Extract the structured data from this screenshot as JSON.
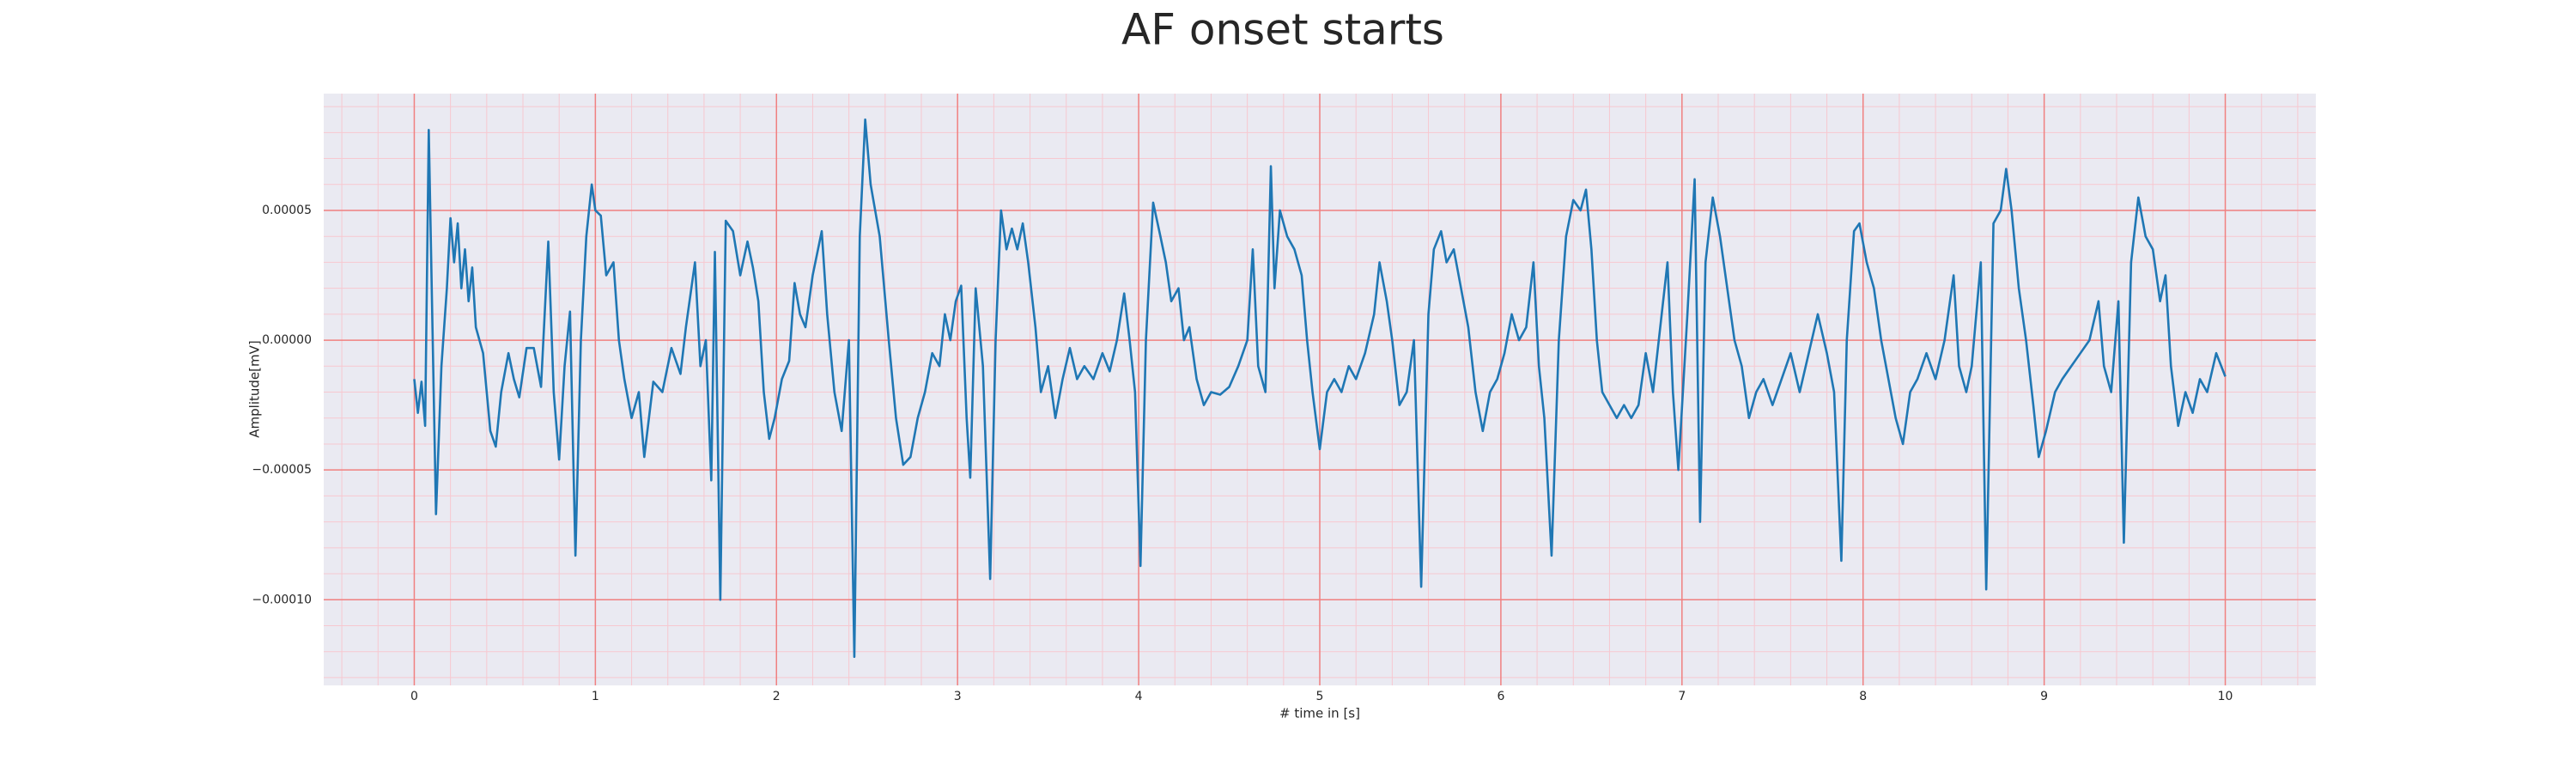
{
  "chart_data": {
    "type": "line",
    "title": "AF onset starts",
    "xlabel": "# time in [s]",
    "ylabel": "Amplitude[mV]",
    "color": "#1f77b4",
    "grid": true,
    "minor_grid": true,
    "xlim": [
      -0.5,
      10.5
    ],
    "ylim": [
      -0.000133,
      9.5e-05
    ],
    "xticks": [
      0,
      1,
      2,
      3,
      4,
      5,
      6,
      7,
      8,
      9,
      10
    ],
    "yticks": [
      {
        "value": -0.0001,
        "label": "−0.00010"
      },
      {
        "value": -5e-05,
        "label": "−0.00005"
      },
      {
        "value": 0,
        "label": "0.00000"
      },
      {
        "value": 5e-05,
        "label": "0.00005"
      }
    ],
    "xminorticks": [
      -0.4,
      -0.2,
      0.2,
      0.4,
      0.6,
      0.8,
      1.2,
      1.4,
      1.6,
      1.8,
      2.2,
      2.4,
      2.6,
      2.8,
      3.2,
      3.4,
      3.6,
      3.8,
      4.2,
      4.4,
      4.6,
      4.8,
      5.2,
      5.4,
      5.6,
      5.8,
      6.2,
      6.4,
      6.6,
      6.8,
      7.2,
      7.4,
      7.6,
      7.8,
      8.2,
      8.4,
      8.6,
      8.8,
      9.2,
      9.4,
      9.6,
      9.8,
      10.2,
      10.4
    ],
    "yminorticks": [
      -0.00013,
      -0.00012,
      -0.00011,
      -9e-05,
      -8e-05,
      -7e-05,
      -6e-05,
      -4e-05,
      -3e-05,
      -2e-05,
      -1e-05,
      1e-05,
      2e-05,
      3e-05,
      4e-05,
      6e-05,
      7e-05,
      8e-05,
      9e-05
    ],
    "x": [
      0,
      0.02,
      0.04,
      0.06,
      0.08,
      0.12,
      0.15,
      0.18,
      0.2,
      0.22,
      0.24,
      0.26,
      0.28,
      0.3,
      0.32,
      0.34,
      0.38,
      0.42,
      0.45,
      0.48,
      0.52,
      0.55,
      0.58,
      0.62,
      0.66,
      0.7,
      0.74,
      0.77,
      0.8,
      0.83,
      0.86,
      0.89,
      0.92,
      0.95,
      0.98,
      1.0,
      1.03,
      1.06,
      1.1,
      1.13,
      1.16,
      1.2,
      1.24,
      1.27,
      1.32,
      1.37,
      1.42,
      1.47,
      1.5,
      1.55,
      1.58,
      1.61,
      1.64,
      1.66,
      1.69,
      1.72,
      1.76,
      1.8,
      1.84,
      1.87,
      1.9,
      1.93,
      1.96,
      1.99,
      2.03,
      2.07,
      2.1,
      2.13,
      2.16,
      2.2,
      2.25,
      2.28,
      2.32,
      2.36,
      2.4,
      2.43,
      2.46,
      2.49,
      2.52,
      2.57,
      2.62,
      2.66,
      2.7,
      2.74,
      2.78,
      2.82,
      2.86,
      2.9,
      2.93,
      2.96,
      2.99,
      3.02,
      3.05,
      3.07,
      3.1,
      3.14,
      3.18,
      3.21,
      3.24,
      3.27,
      3.3,
      3.33,
      3.36,
      3.39,
      3.43,
      3.46,
      3.5,
      3.54,
      3.58,
      3.62,
      3.66,
      3.7,
      3.75,
      3.8,
      3.84,
      3.88,
      3.92,
      3.95,
      3.98,
      4.01,
      4.04,
      4.08,
      4.12,
      4.15,
      4.18,
      4.22,
      4.25,
      4.28,
      4.32,
      4.36,
      4.4,
      4.45,
      4.5,
      4.55,
      4.6,
      4.63,
      4.66,
      4.7,
      4.73,
      4.75,
      4.78,
      4.82,
      4.86,
      4.9,
      4.93,
      4.96,
      5.0,
      5.04,
      5.08,
      5.12,
      5.16,
      5.2,
      5.25,
      5.3,
      5.33,
      5.37,
      5.4,
      5.44,
      5.48,
      5.52,
      5.56,
      5.6,
      5.63,
      5.67,
      5.7,
      5.74,
      5.78,
      5.82,
      5.86,
      5.9,
      5.94,
      5.98,
      6.02,
      6.06,
      6.1,
      6.14,
      6.18,
      6.21,
      6.24,
      6.28,
      6.32,
      6.36,
      6.4,
      6.44,
      6.47,
      6.5,
      6.53,
      6.56,
      6.6,
      6.64,
      6.68,
      6.72,
      6.76,
      6.8,
      6.84,
      6.88,
      6.92,
      6.95,
      6.98,
      7.03,
      7.07,
      7.1,
      7.13,
      7.17,
      7.21,
      7.25,
      7.29,
      7.33,
      7.37,
      7.41,
      7.45,
      7.5,
      7.55,
      7.6,
      7.65,
      7.7,
      7.75,
      7.8,
      7.84,
      7.88,
      7.91,
      7.95,
      7.98,
      8.02,
      8.06,
      8.1,
      8.14,
      8.18,
      8.22,
      8.26,
      8.3,
      8.35,
      8.4,
      8.45,
      8.5,
      8.53,
      8.57,
      8.6,
      8.65,
      8.68,
      8.72,
      8.76,
      8.79,
      8.82,
      8.86,
      8.9,
      8.94,
      8.97,
      9.01,
      9.06,
      9.1,
      9.15,
      9.2,
      9.25,
      9.3,
      9.33,
      9.37,
      9.41,
      9.44,
      9.48,
      9.52,
      9.56,
      9.6,
      9.64,
      9.67,
      9.7,
      9.74,
      9.78,
      9.82,
      9.86,
      9.9,
      9.95,
      10.0
    ],
    "values": [
      -1.5e-05,
      -2.8e-05,
      -1.6e-05,
      -3.3e-05,
      8.1e-05,
      -6.7e-05,
      -1e-05,
      2e-05,
      4.7e-05,
      3e-05,
      4.5e-05,
      2e-05,
      3.5e-05,
      1.5e-05,
      2.8e-05,
      5e-06,
      -5e-06,
      -3.5e-05,
      -4.1e-05,
      -2e-05,
      -5e-06,
      -1.5e-05,
      -2.2e-05,
      -3e-06,
      -3e-06,
      -1.8e-05,
      3.8e-05,
      -2e-05,
      -4.6e-05,
      -1e-05,
      1.1e-05,
      -8.3e-05,
      0,
      4e-05,
      6e-05,
      5e-05,
      4.8e-05,
      2.5e-05,
      3e-05,
      0,
      -1.5e-05,
      -3e-05,
      -2e-05,
      -4.5e-05,
      -1.6e-05,
      -2e-05,
      -3e-06,
      -1.3e-05,
      5e-06,
      3e-05,
      -1e-05,
      0,
      -5.4e-05,
      3.4e-05,
      -0.0001,
      4.6e-05,
      4.2e-05,
      2.5e-05,
      3.8e-05,
      2.8e-05,
      1.5e-05,
      -2e-05,
      -3.8e-05,
      -3e-05,
      -1.5e-05,
      -8e-06,
      2.2e-05,
      1e-05,
      5e-06,
      2.5e-05,
      4.2e-05,
      1e-05,
      -2e-05,
      -3.5e-05,
      0,
      -0.000122,
      4e-05,
      8.5e-05,
      6e-05,
      4e-05,
      0,
      -3e-05,
      -4.8e-05,
      -4.5e-05,
      -3e-05,
      -2e-05,
      -5e-06,
      -1e-05,
      1e-05,
      0,
      1.5e-05,
      2.1e-05,
      -3e-05,
      -5.3e-05,
      2e-05,
      -1e-05,
      -9.2e-05,
      0,
      5e-05,
      3.5e-05,
      4.3e-05,
      3.5e-05,
      4.5e-05,
      3e-05,
      5e-06,
      -2e-05,
      -1e-05,
      -3e-05,
      -1.5e-05,
      -3e-06,
      -1.5e-05,
      -1e-05,
      -1.5e-05,
      -5e-06,
      -1.2e-05,
      0,
      1.8e-05,
      0,
      -2e-05,
      -8.7e-05,
      0,
      5.3e-05,
      4e-05,
      3e-05,
      1.5e-05,
      2e-05,
      0,
      5e-06,
      -1.5e-05,
      -2.5e-05,
      -2e-05,
      -2.1e-05,
      -1.8e-05,
      -1e-05,
      0,
      3.5e-05,
      -1e-05,
      -2e-05,
      6.7e-05,
      2e-05,
      5e-05,
      4e-05,
      3.5e-05,
      2.5e-05,
      0,
      -2e-05,
      -4.2e-05,
      -2e-05,
      -1.5e-05,
      -2e-05,
      -1e-05,
      -1.5e-05,
      -5e-06,
      1e-05,
      3e-05,
      1.5e-05,
      0,
      -2.5e-05,
      -2e-05,
      0,
      -9.5e-05,
      1e-05,
      3.5e-05,
      4.2e-05,
      3e-05,
      3.5e-05,
      2e-05,
      5e-06,
      -2e-05,
      -3.5e-05,
      -2e-05,
      -1.5e-05,
      -5e-06,
      1e-05,
      0,
      5e-06,
      3e-05,
      -1e-05,
      -3e-05,
      -8.3e-05,
      0,
      4e-05,
      5.4e-05,
      5e-05,
      5.8e-05,
      3.5e-05,
      0,
      -2e-05,
      -2.5e-05,
      -3e-05,
      -2.5e-05,
      -3e-05,
      -2.5e-05,
      -5e-06,
      -2e-05,
      5e-06,
      3e-05,
      -2e-05,
      -5e-05,
      1e-05,
      6.2e-05,
      -7e-05,
      3e-05,
      5.5e-05,
      4e-05,
      2e-05,
      0,
      -1e-05,
      -3e-05,
      -2e-05,
      -1.5e-05,
      -2.5e-05,
      -1.5e-05,
      -5e-06,
      -2e-05,
      -5e-06,
      1e-05,
      -5e-06,
      -2e-05,
      -8.5e-05,
      0,
      4.2e-05,
      4.5e-05,
      3e-05,
      2e-05,
      0,
      -1.5e-05,
      -3e-05,
      -4e-05,
      -2e-05,
      -1.5e-05,
      -5e-06,
      -1.5e-05,
      0,
      2.5e-05,
      -1e-05,
      -2e-05,
      -1e-05,
      3e-05,
      -9.6e-05,
      4.5e-05,
      5e-05,
      6.6e-05,
      5e-05,
      2e-05,
      0,
      -2.5e-05,
      -4.5e-05,
      -3.5e-05,
      -2e-05,
      -1.5e-05,
      -1e-05,
      -5e-06,
      0,
      1.5e-05,
      -1e-05,
      -2e-05,
      1.5e-05,
      -7.8e-05,
      3e-05,
      5.5e-05,
      4e-05,
      3.5e-05,
      1.5e-05,
      2.5e-05,
      -1e-05,
      -3.3e-05,
      -2e-05,
      -2.8e-05,
      -1.5e-05,
      -2e-05,
      -5e-06,
      -1.4e-05
    ]
  }
}
